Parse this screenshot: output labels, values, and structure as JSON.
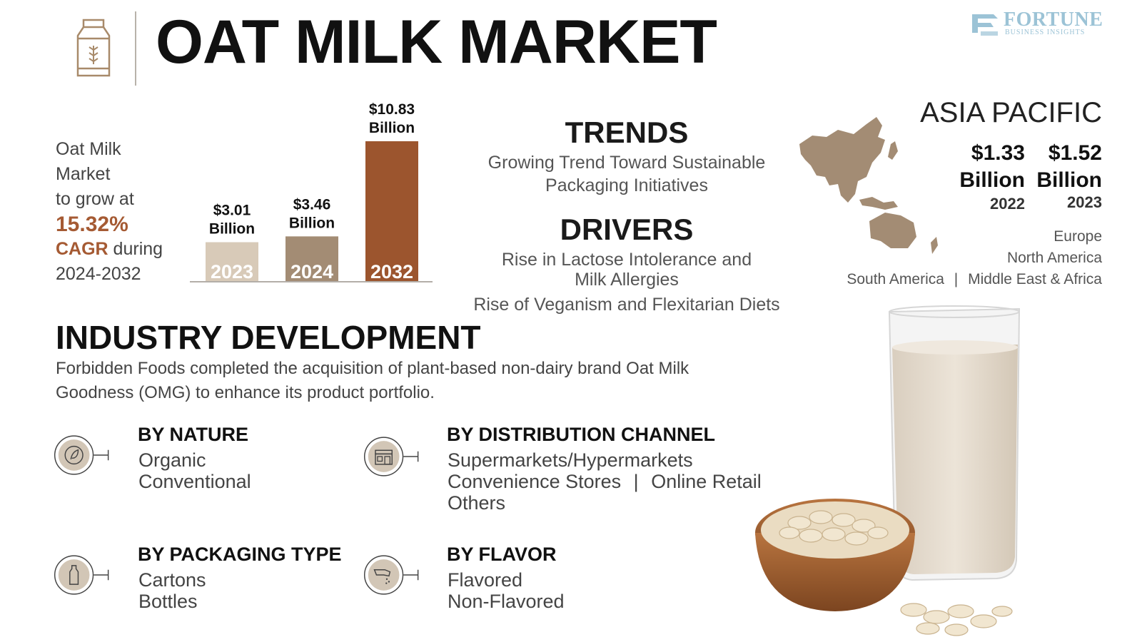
{
  "header": {
    "title": "OAT MILK MARKET",
    "brand_name": "FORTUNE",
    "brand_sub": "BUSINESS INSIGHTS"
  },
  "cagr": {
    "line1": "Oat Milk",
    "line2": "Market",
    "line3": "to grow at",
    "value": "15.32%",
    "cagr_word": "CAGR",
    "during": " during",
    "period": "2024-2032"
  },
  "chart_data": {
    "type": "bar",
    "categories": [
      "2023",
      "2024",
      "2032"
    ],
    "values": [
      3.01,
      3.46,
      10.83
    ],
    "value_labels": [
      [
        "$3.01",
        "Billion"
      ],
      [
        "$3.46",
        "Billion"
      ],
      [
        "$10.83",
        "Billion"
      ]
    ],
    "colors": [
      "#d8cab8",
      "#a38c74",
      "#9c552e"
    ],
    "title": "",
    "xlabel": "",
    "ylabel": ""
  },
  "trends": {
    "title": "TRENDS",
    "line1": "Growing Trend Toward Sustainable",
    "line2": "Packaging Initiatives"
  },
  "drivers": {
    "title": "DRIVERS",
    "d1_line1": "Rise in Lactose Intolerance and",
    "d1_line2": "Milk Allergies",
    "d2": "Rise of Veganism and Flexitarian Diets"
  },
  "region": {
    "title": "ASIA PACIFIC",
    "v2022": "$1.33",
    "v2023": "$1.52",
    "unit": "Billion",
    "y2022": "2022",
    "y2023": "2023",
    "europe": "Europe",
    "north_america": "North America",
    "south_america": "South America",
    "separator": "|",
    "mea": "Middle East & Africa",
    "map_color": "#a38c74"
  },
  "industry": {
    "title": "INDUSTRY DEVELOPMENT",
    "line1": "Forbidden Foods completed the acquisition of plant-based non-dairy brand Oat Milk",
    "line2": "Goodness (OMG) to enhance its product portfolio."
  },
  "segments": {
    "nature": {
      "title": "BY NATURE",
      "items": [
        "Organic",
        "Conventional"
      ]
    },
    "distribution": {
      "title": "BY DISTRIBUTION CHANNEL",
      "line1": "Supermarkets/Hypermarkets",
      "line2a": "Convenience Stores",
      "sep": "|",
      "line2b": "Online Retail",
      "line3": "Others"
    },
    "packaging": {
      "title": "BY PACKAGING TYPE",
      "items": [
        "Cartons",
        "Bottles"
      ]
    },
    "flavor": {
      "title": "BY FLAVOR",
      "items": [
        "Flavored",
        "Non-Flavored"
      ]
    }
  },
  "colors": {
    "accent_brown": "#a55a33",
    "icon_fill": "#d2c6b6",
    "text_gray": "#555555"
  }
}
